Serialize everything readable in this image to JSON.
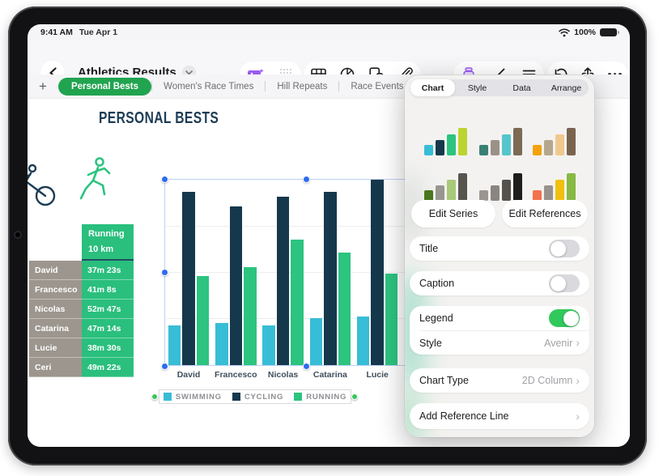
{
  "status_bar": {
    "time": "9:41 AM",
    "date": "Tue Apr 1",
    "battery_percent": "100%"
  },
  "toolbar": {
    "title": "Athletics Results",
    "icon_names": [
      "back-chevron",
      "title-dropdown",
      "insert-media",
      "apps-grid",
      "insert-table",
      "insert-chart",
      "insert-shape",
      "attachment",
      "format-active",
      "style-brush",
      "text-options",
      "undo",
      "share",
      "more"
    ]
  },
  "tab_bar": {
    "add_label": "+",
    "tabs": [
      {
        "label": "Personal Bests",
        "active": true
      },
      {
        "label": "Women's Race Times",
        "active": false
      },
      {
        "label": "Hill Repeats",
        "active": false
      },
      {
        "label": "Race Events Calendar",
        "active": false
      }
    ]
  },
  "sheet": {
    "title": "PERSONAL BESTS"
  },
  "results_table": {
    "header_lines": [
      "Running",
      "10 km"
    ],
    "rows": [
      {
        "name": "David",
        "time": "37m 23s"
      },
      {
        "name": "Francesco",
        "time": "41m 8s"
      },
      {
        "name": "Nicolas",
        "time": "52m 47s"
      },
      {
        "name": "Catarina",
        "time": "47m 14s"
      },
      {
        "name": "Lucie",
        "time": "38m 30s"
      },
      {
        "name": "Ceri",
        "time": "49m 22s"
      }
    ],
    "name_cell_color": "#9c968e",
    "value_cell_color": "#2abf7d"
  },
  "chart_data": {
    "type": "bar",
    "title": "",
    "categories": [
      "David",
      "Francesco",
      "Nicolas",
      "Catarina",
      "Lucie"
    ],
    "series": [
      {
        "name": "SWIMMING",
        "color": "#38bdd6",
        "values": [
          17,
          18,
          17,
          20,
          20.5
        ]
      },
      {
        "name": "CYCLING",
        "color": "#16384c",
        "values": [
          72.5,
          66.5,
          70.5,
          72.5,
          78
        ]
      },
      {
        "name": "RUNNING",
        "color": "#2cc47f",
        "values": [
          37.4,
          41.1,
          52.8,
          47.2,
          38.5
        ]
      }
    ],
    "ylim": [
      0,
      78
    ],
    "unit": "minutes (estimated from bar heights; running matches table times)",
    "grid": true,
    "legend_position": "bottom",
    "chart_selected": true
  },
  "panel": {
    "tabs": [
      {
        "label": "Chart",
        "active": true
      },
      {
        "label": "Style",
        "active": false
      },
      {
        "label": "Data",
        "active": false
      },
      {
        "label": "Arrange",
        "active": false
      }
    ],
    "style_thumbnails": [
      {
        "name": "chart-style-1",
        "colors": [
          "#35bdd6",
          "#16384c",
          "#2cc47f",
          "#bcd431"
        ]
      },
      {
        "name": "chart-style-2",
        "colors": [
          "#3a7f74",
          "#9a9288",
          "#54c5cd",
          "#7b6a54"
        ]
      },
      {
        "name": "chart-style-3",
        "colors": [
          "#f2a20d",
          "#b5a78d",
          "#f0c88d",
          "#7a6450"
        ]
      },
      {
        "name": "chart-style-4",
        "colors": [
          "#47771d",
          "#999591",
          "#a9c878",
          "#57544e"
        ]
      },
      {
        "name": "chart-style-5",
        "colors": [
          "#9a9590",
          "#8a8580",
          "#55524e",
          "#1f1d1b"
        ]
      },
      {
        "name": "chart-style-6",
        "colors": [
          "#f4714d",
          "#98928c",
          "#efc00e",
          "#87b943"
        ]
      }
    ],
    "edit_series_label": "Edit Series",
    "edit_references_label": "Edit References",
    "title_toggle": {
      "label": "Title",
      "on": false
    },
    "caption_toggle": {
      "label": "Caption",
      "on": false
    },
    "legend_toggle": {
      "label": "Legend",
      "on": true
    },
    "style_row": {
      "label": "Style",
      "value": "Avenir"
    },
    "chart_type_row": {
      "label": "Chart Type",
      "value": "2D Column"
    },
    "add_reference_row": {
      "label": "Add Reference Line"
    }
  },
  "colors": {
    "accent_green": "#21a44f",
    "toggle_on_green": "#31c85c",
    "selection_blue": "#2e6bf0",
    "selection_handle_green": "#34c759",
    "purple_accent": "#9a5cf0",
    "navy": "#16384c",
    "cyan": "#38bdd6",
    "chart_green": "#2cc47f",
    "table_taupe": "#9c968e",
    "table_green": "#2abf7d"
  }
}
